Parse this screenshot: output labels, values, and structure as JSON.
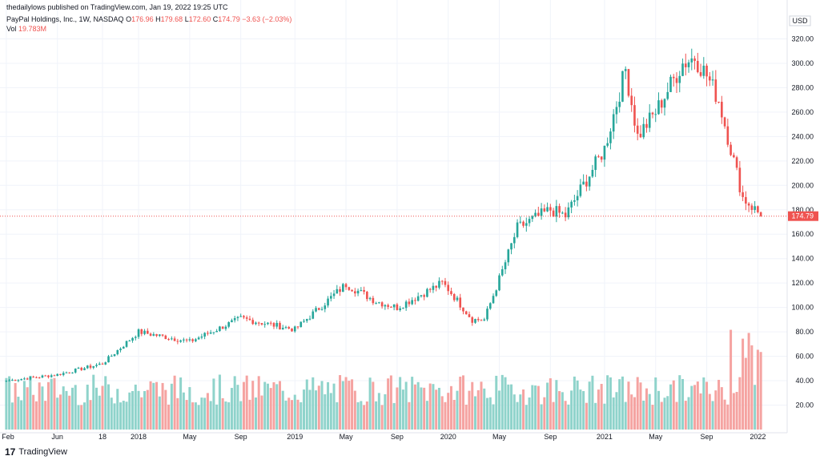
{
  "header": {
    "publisher_line": "thedailylows published on TradingView.com, Jan 19, 2022 19:25 UTC",
    "symbol_line": "PayPal Holdings, Inc., 1W, NASDAQ",
    "o_label": "O",
    "o_value": "176.96",
    "h_label": "H",
    "h_value": "179.68",
    "l_label": "L",
    "l_value": "172.60",
    "c_label": "C",
    "c_value": "174.79",
    "change": "−3.63 (−2.03%)",
    "vol_label": "Vol",
    "vol_value": "19.783M"
  },
  "footer": {
    "brand_mark": "17",
    "brand": "TradingView"
  },
  "colors": {
    "up": "#26a69a",
    "down": "#ef5350",
    "vol_up": "#8fd3cb",
    "vol_down": "#f5a3a1",
    "grid": "#f0f3fa",
    "text": "#131722"
  },
  "chart_data": {
    "type": "candlestick",
    "title": "PayPal Holdings, Inc., 1W, NASDAQ",
    "currency": "USD",
    "last_price": 174.79,
    "last_price_label": "174.79",
    "ylim": [
      0,
      340
    ],
    "y_tick_labels": [
      "20.00",
      "40.00",
      "60.00",
      "80.00",
      "100.00",
      "120.00",
      "140.00",
      "160.00",
      "180.00",
      "200.00",
      "220.00",
      "240.00",
      "260.00",
      "280.00",
      "300.00",
      "320.00"
    ],
    "y_tick_values": [
      20,
      40,
      60,
      80,
      100,
      120,
      140,
      160,
      180,
      200,
      220,
      240,
      260,
      280,
      300,
      320
    ],
    "x_tick_labels": [
      "Feb",
      "Jun",
      "18",
      "2018",
      "May",
      "Sep",
      "2019",
      "May",
      "Sep",
      "2020",
      "May",
      "Sep",
      "2021",
      "May",
      "Sep",
      "2022"
    ],
    "x_tick_index": [
      0,
      17,
      32,
      44,
      61,
      78,
      96,
      113,
      130,
      147,
      164,
      181,
      199,
      216,
      233,
      250
    ],
    "volume_overlay_note": "volume bars share the price scale visually (overlay at bottom of pane)",
    "anchors_close": [
      [
        0,
        40
      ],
      [
        17,
        45
      ],
      [
        32,
        54
      ],
      [
        44,
        80
      ],
      [
        61,
        72
      ],
      [
        78,
        91
      ],
      [
        96,
        82
      ],
      [
        113,
        119
      ],
      [
        123,
        105
      ],
      [
        130,
        100
      ],
      [
        145,
        120
      ],
      [
        147,
        115
      ],
      [
        155,
        90
      ],
      [
        159,
        90
      ],
      [
        165,
        130
      ],
      [
        170,
        165
      ],
      [
        181,
        180
      ],
      [
        186,
        175
      ],
      [
        199,
        230
      ],
      [
        206,
        295
      ],
      [
        210,
        240
      ],
      [
        216,
        260
      ],
      [
        225,
        300
      ],
      [
        229,
        305
      ],
      [
        233,
        290
      ],
      [
        237,
        270
      ],
      [
        240,
        240
      ],
      [
        245,
        190
      ],
      [
        250,
        178
      ],
      [
        251,
        174.79
      ]
    ],
    "ohlc_seed": 7
  }
}
